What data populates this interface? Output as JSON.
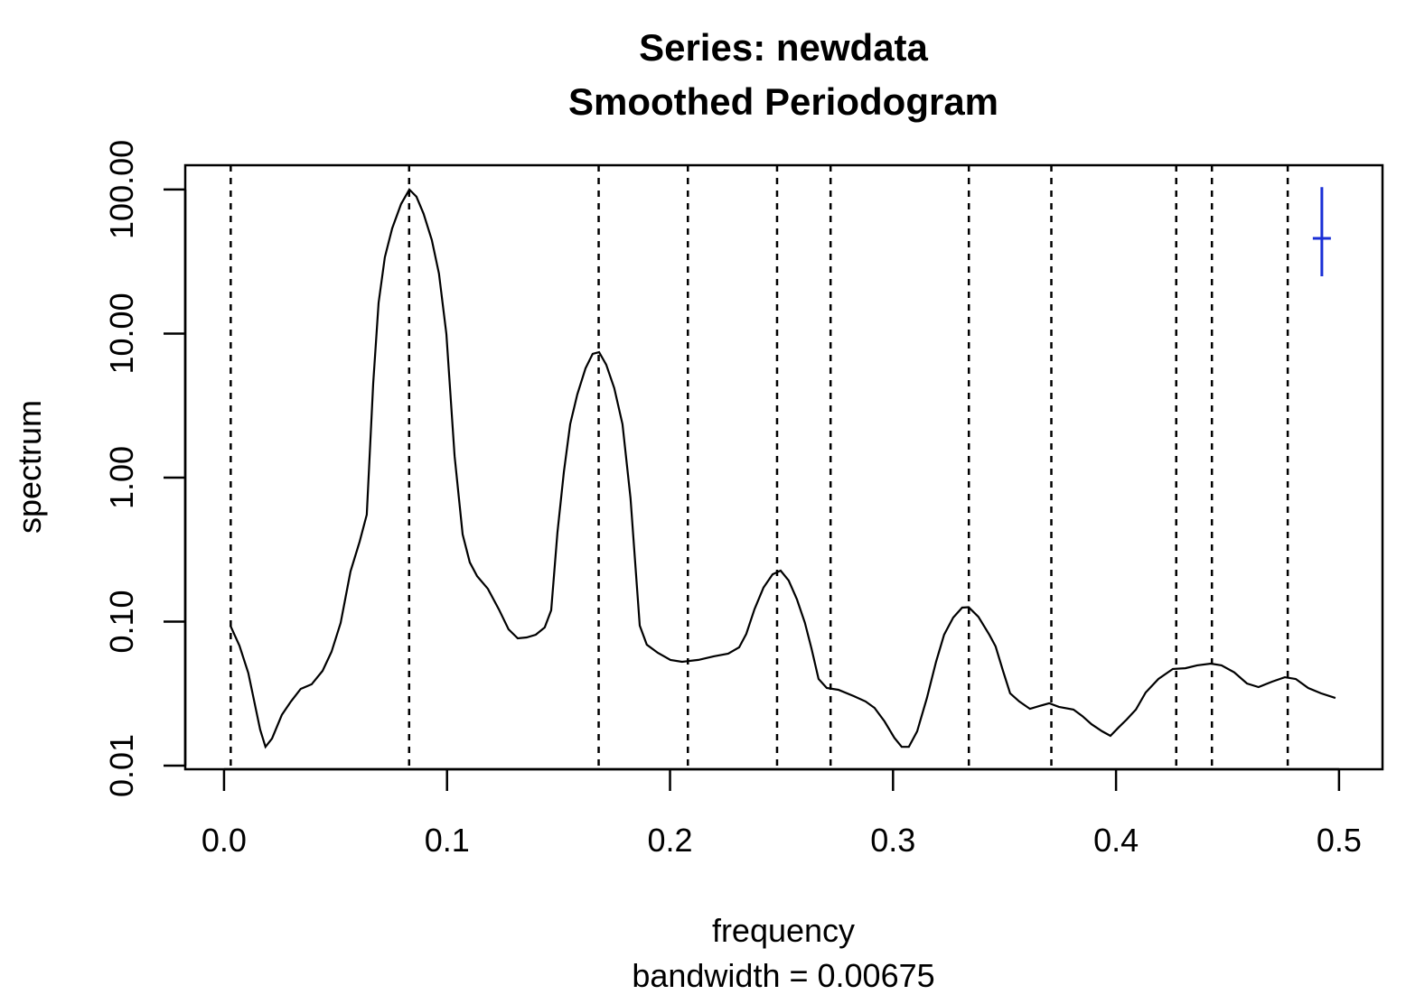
{
  "chart_data": {
    "type": "line",
    "title": "Series: newdata",
    "subtitle": "Smoothed Periodogram",
    "xlabel": "frequency",
    "xlabel_sub": "bandwidth = 0.00675",
    "ylabel": "spectrum",
    "log_y": true,
    "color": "#000000",
    "xlim": [
      -0.0174,
      0.5195
    ],
    "ylim": [
      0.00944,
      147.5
    ],
    "xticks": [
      {
        "value": 0,
        "label": "0.0"
      },
      0.1,
      0.2,
      0.3,
      0.4,
      0.5
    ],
    "yticks": [
      0.01,
      {
        "value": 0.1,
        "label": "0.10"
      },
      {
        "value": 1,
        "label": "1.00"
      },
      {
        "value": 10,
        "label": "10.00"
      },
      {
        "value": 100,
        "label": "100.00"
      }
    ],
    "vlines": [
      0.003,
      0.083,
      0.168,
      0.208,
      0.248,
      0.272,
      0.334,
      0.371,
      0.427,
      0.443,
      0.477
    ],
    "ci": {
      "x": 0.4923,
      "center": 45.8,
      "lower": 25,
      "upper": 104,
      "color": "#1a2fd6"
    },
    "x": [
      0.0028,
      0.0069,
      0.0109,
      0.0162,
      0.0186,
      0.0215,
      0.0259,
      0.03,
      0.0344,
      0.0393,
      0.0442,
      0.0482,
      0.0523,
      0.0567,
      0.0608,
      0.064,
      0.0669,
      0.0693,
      0.0721,
      0.0754,
      0.0794,
      0.0831,
      0.0863,
      0.0895,
      0.0932,
      0.0964,
      0.0997,
      0.1034,
      0.107,
      0.1102,
      0.1135,
      0.1183,
      0.1232,
      0.1276,
      0.1317,
      0.1357,
      0.1398,
      0.1438,
      0.1467,
      0.1495,
      0.1524,
      0.1552,
      0.1584,
      0.1621,
      0.1653,
      0.1682,
      0.1714,
      0.175,
      0.1787,
      0.1823,
      0.1864,
      0.1896,
      0.1945,
      0.2002,
      0.2054,
      0.2127,
      0.2196,
      0.2261,
      0.231,
      0.2342,
      0.2379,
      0.2419,
      0.246,
      0.2496,
      0.2532,
      0.2569,
      0.2605,
      0.2634,
      0.2666,
      0.2703,
      0.2755,
      0.2824,
      0.2877,
      0.2917,
      0.2962,
      0.3006,
      0.3039,
      0.3071,
      0.3108,
      0.3152,
      0.3193,
      0.3229,
      0.327,
      0.331,
      0.3339,
      0.3383,
      0.3432,
      0.346,
      0.3493,
      0.3525,
      0.3566,
      0.3614,
      0.3655,
      0.37,
      0.3744,
      0.3809,
      0.3849,
      0.389,
      0.3938,
      0.3975,
      0.4011,
      0.4048,
      0.4089,
      0.4133,
      0.419,
      0.4255,
      0.4311,
      0.4364,
      0.4425,
      0.4473,
      0.453,
      0.4587,
      0.4639,
      0.47,
      0.4757,
      0.4806,
      0.4862,
      0.4919,
      0.4984
    ],
    "values": [
      0.094,
      0.068,
      0.044,
      0.0178,
      0.0135,
      0.0154,
      0.0225,
      0.0279,
      0.0341,
      0.0367,
      0.0455,
      0.0617,
      0.098,
      0.223,
      0.359,
      0.553,
      4.49,
      16.4,
      33.9,
      53.7,
      79.4,
      100,
      89.1,
      67.8,
      44.6,
      26.1,
      9.94,
      1.41,
      0.403,
      0.258,
      0.207,
      0.169,
      0.122,
      0.0885,
      0.0766,
      0.0777,
      0.0811,
      0.091,
      0.12,
      0.415,
      1.09,
      2.35,
      3.78,
      5.74,
      7.23,
      7.43,
      6.08,
      4.18,
      2.35,
      0.718,
      0.0938,
      0.0692,
      0.0608,
      0.0542,
      0.0526,
      0.0542,
      0.0574,
      0.06,
      0.0663,
      0.0822,
      0.122,
      0.172,
      0.213,
      0.226,
      0.193,
      0.143,
      0.098,
      0.0653,
      0.04,
      0.0346,
      0.0336,
      0.0304,
      0.0279,
      0.0252,
      0.0203,
      0.0156,
      0.0135,
      0.0135,
      0.0173,
      0.0295,
      0.0526,
      0.0811,
      0.1067,
      0.125,
      0.126,
      0.108,
      0.081,
      0.0673,
      0.0455,
      0.0318,
      0.0279,
      0.0248,
      0.0259,
      0.0271,
      0.0256,
      0.0245,
      0.0221,
      0.0194,
      0.0173,
      0.0161,
      0.0184,
      0.0209,
      0.0245,
      0.0322,
      0.04,
      0.0469,
      0.0475,
      0.0497,
      0.0511,
      0.0497,
      0.0444,
      0.0372,
      0.0351,
      0.0383,
      0.0411,
      0.04,
      0.0346,
      0.0318,
      0.0295
    ]
  }
}
